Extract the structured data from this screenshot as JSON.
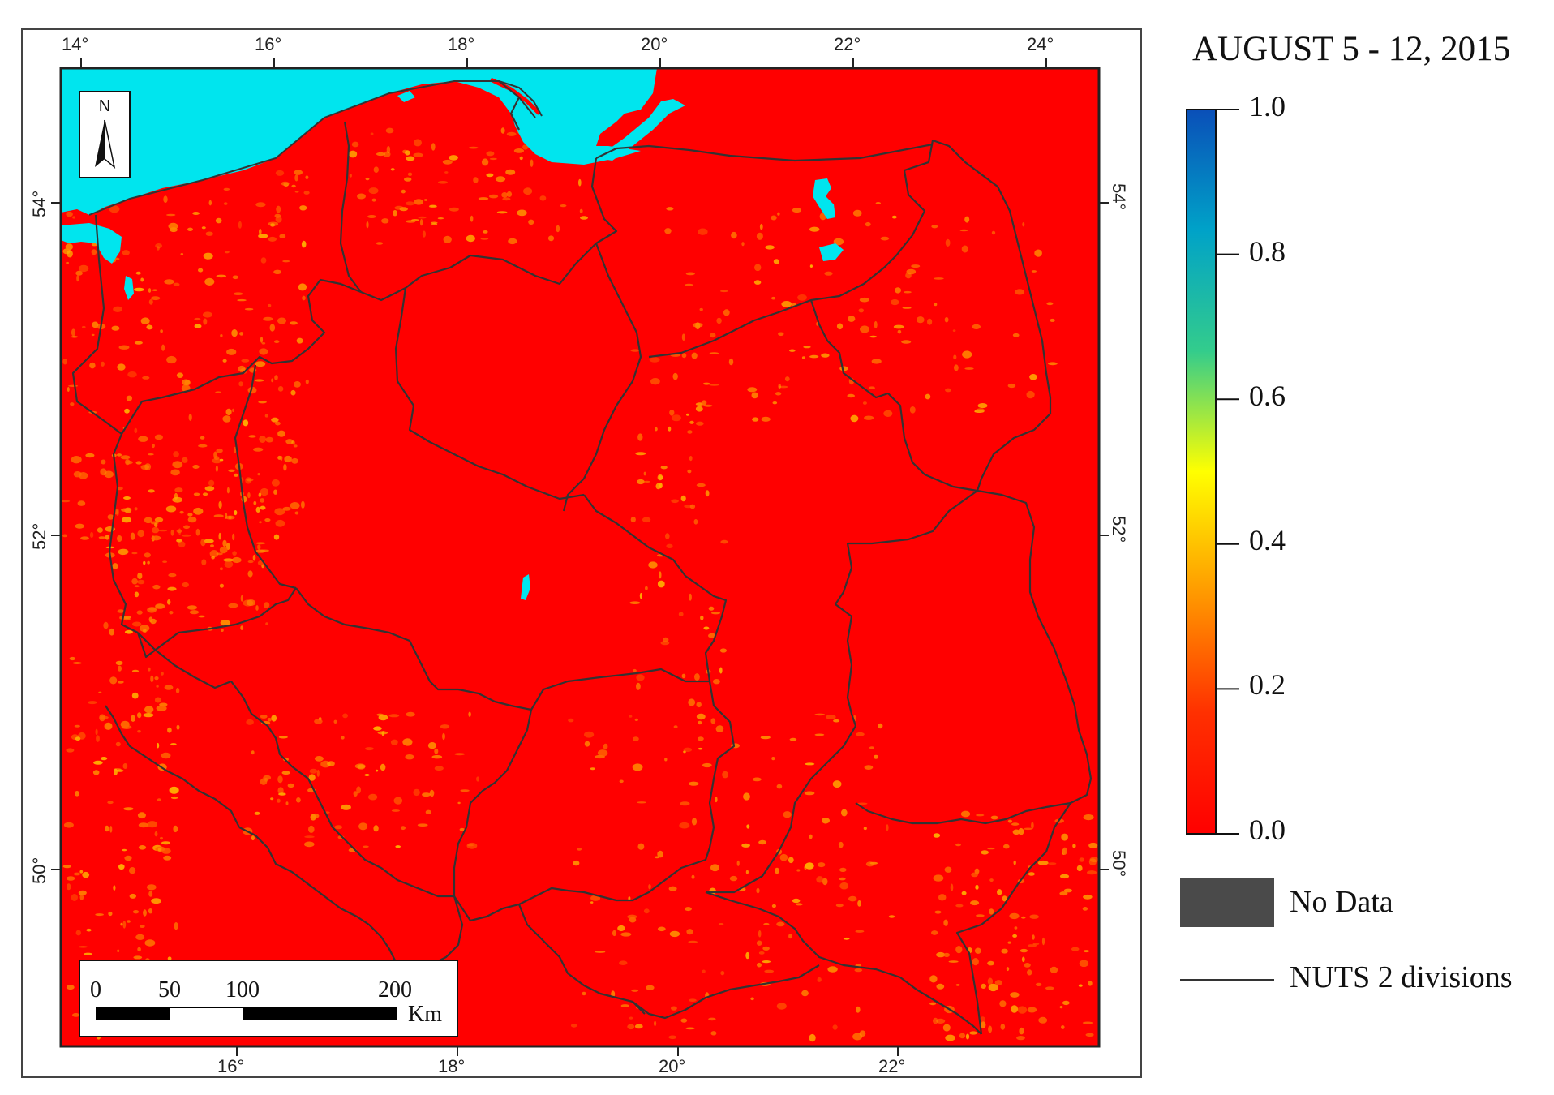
{
  "title": "AUGUST 5 - 12, 2015",
  "colorbar": {
    "labels": [
      "1.0",
      "0.8",
      "0.6",
      "0.4",
      "0.2",
      "0.0"
    ],
    "stops": [
      "#0a4fb8",
      "#00a2c8",
      "#33cc8c",
      "#ffff00",
      "#ff9a00",
      "#ff3000",
      "#ff0000"
    ]
  },
  "legend": {
    "no_data_label": "No Data",
    "no_data_color": "#4a4a4a",
    "nuts_label": "NUTS 2 divisions"
  },
  "axes": {
    "top_lon": [
      "14°",
      "16°",
      "18°",
      "20°",
      "22°",
      "24°"
    ],
    "bottom_lon": [
      "16°",
      "18°",
      "20°",
      "22°"
    ],
    "left_lat": [
      "54°",
      "52°",
      "50°"
    ],
    "right_lat": [
      "54°",
      "52°",
      "50°"
    ]
  },
  "north_arrow": {
    "label": "N",
    "icon": "north-arrow-icon"
  },
  "scale_bar": {
    "ticks": [
      "0",
      "50",
      "100",
      "200"
    ],
    "unit": "Km"
  },
  "colors": {
    "land": "#ff0000",
    "water": "#00e5ee",
    "border": "#333333",
    "patch": "#ff8a00",
    "patch_light": "#ffb000"
  }
}
